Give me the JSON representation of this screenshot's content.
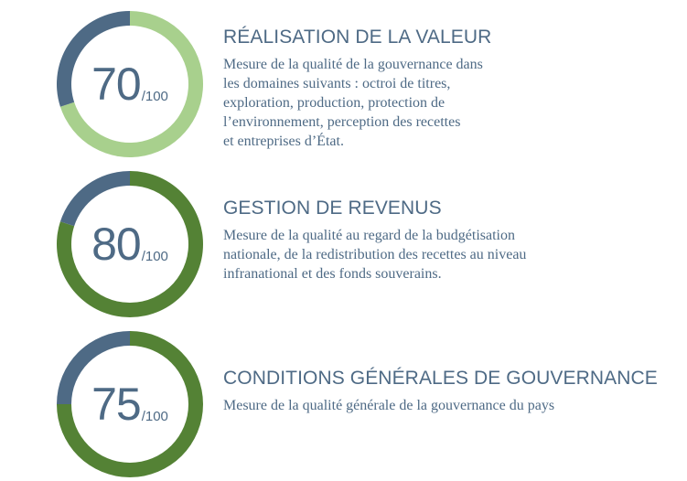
{
  "colors": {
    "remainder": "#4e6a85",
    "text": "#4e6a85",
    "light_green": "#a8d08d",
    "dark_green": "#548235"
  },
  "chart_data": [
    {
      "type": "pie",
      "variant": "donut",
      "value": 70,
      "max": 100,
      "score_label": "70",
      "denominator_label": "/100",
      "fill_color": "#a8d08d",
      "title": "RÉALISATION DE LA VALEUR",
      "description_lines": [
        "Mesure de la qualité de la gouvernance dans",
        "les domaines suivants : octroi de titres,",
        "exploration, production, protection de",
        "l’environnement, perception des recettes",
        "et entreprises d’État."
      ]
    },
    {
      "type": "pie",
      "variant": "donut",
      "value": 80,
      "max": 100,
      "score_label": "80",
      "denominator_label": "/100",
      "fill_color": "#548235",
      "title": "GESTION DE REVENUS",
      "description_lines": [
        "Mesure de la qualité au regard de la budgétisation",
        "nationale, de la redistribution des recettes au niveau",
        "infranational et des fonds souverains."
      ]
    },
    {
      "type": "pie",
      "variant": "donut",
      "value": 75,
      "max": 100,
      "score_label": "75",
      "denominator_label": "/100",
      "fill_color": "#548235",
      "title": "CONDITIONS GÉNÉRALES DE GOUVERNANCE",
      "description_lines": [
        "Mesure de la qualité générale de la gouvernance du pays"
      ]
    }
  ]
}
